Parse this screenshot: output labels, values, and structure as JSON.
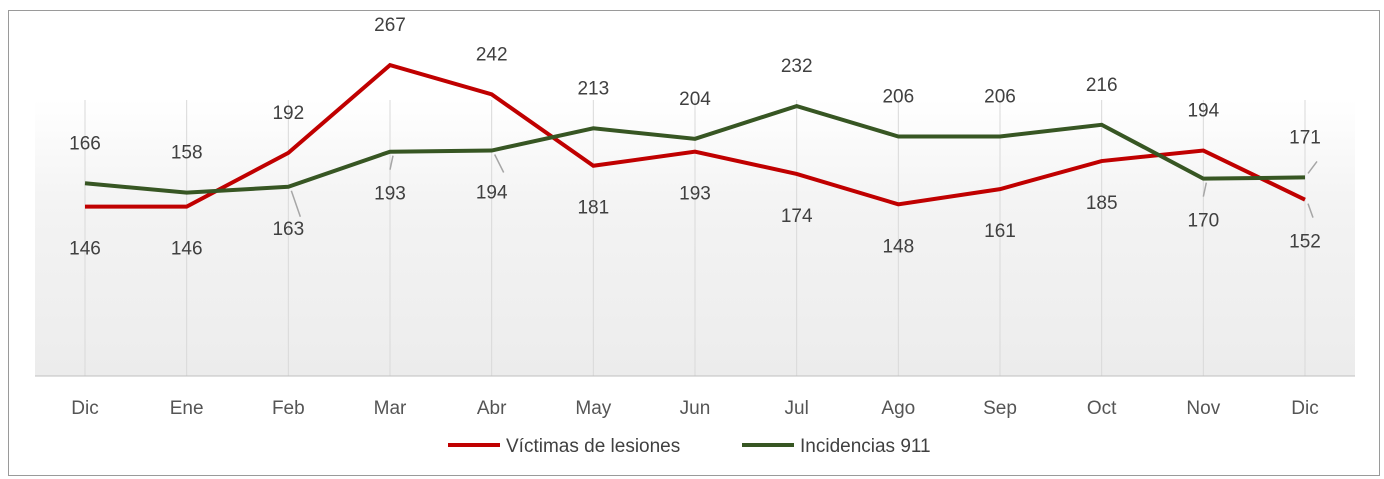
{
  "chart_data": {
    "type": "line",
    "categories": [
      "Dic",
      "Ene",
      "Feb",
      "Mar",
      "Abr",
      "May",
      "Jun",
      "Jul",
      "Ago",
      "Sep",
      "Oct",
      "Nov",
      "Dic"
    ],
    "series": [
      {
        "name": "Víctimas de lesiones",
        "color": "#c00000",
        "values": [
          146,
          146,
          192,
          267,
          242,
          181,
          193,
          174,
          148,
          161,
          185,
          194,
          152
        ]
      },
      {
        "name": "Incidencias 911",
        "color": "#375623",
        "values": [
          166,
          158,
          163,
          193,
          194,
          213,
          204,
          232,
          206,
          206,
          216,
          170,
          171
        ]
      }
    ],
    "title": "",
    "xlabel": "",
    "ylabel": "",
    "legend_position": "bottom",
    "vertical_gridlines": true,
    "horizontal_gridlines": false
  }
}
